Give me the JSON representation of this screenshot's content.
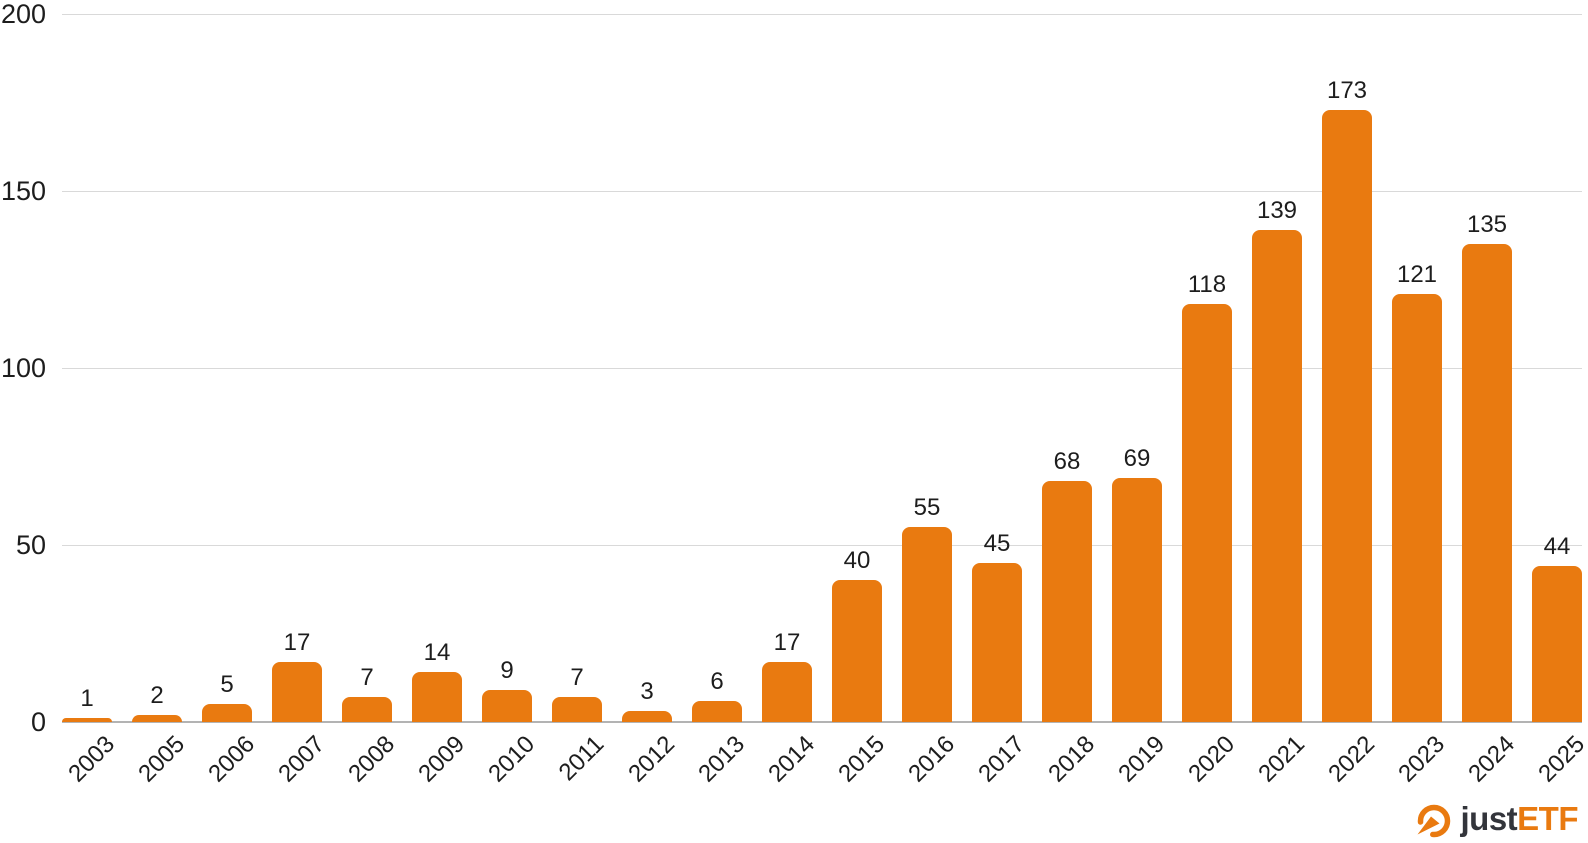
{
  "chart_data": {
    "type": "bar",
    "categories": [
      "2003",
      "2005",
      "2006",
      "2007",
      "2008",
      "2009",
      "2010",
      "2011",
      "2012",
      "2013",
      "2014",
      "2015",
      "2016",
      "2017",
      "2018",
      "2019",
      "2020",
      "2021",
      "2022",
      "2023",
      "2024",
      "2025"
    ],
    "values": [
      1,
      2,
      5,
      17,
      7,
      14,
      9,
      7,
      3,
      6,
      17,
      40,
      55,
      45,
      68,
      69,
      118,
      139,
      173,
      121,
      135,
      44
    ],
    "title": "",
    "xlabel": "",
    "ylabel": "",
    "ylim": [
      0,
      200
    ],
    "yticks": [
      0,
      50,
      100,
      150,
      200
    ],
    "grid": "horizontal",
    "legend_position": "none",
    "bar_color": "#e97a10",
    "grid_color": "#d9d9d9",
    "axis_color": "#b3b3b3",
    "text_color": "#1d1d1d"
  },
  "branding": {
    "logo_text_just": "just",
    "logo_text_etf": "ETF",
    "logo_icon": "gauge-arrow-icon",
    "logo_dark_color": "#33353b",
    "logo_orange_color": "#e97a10"
  }
}
